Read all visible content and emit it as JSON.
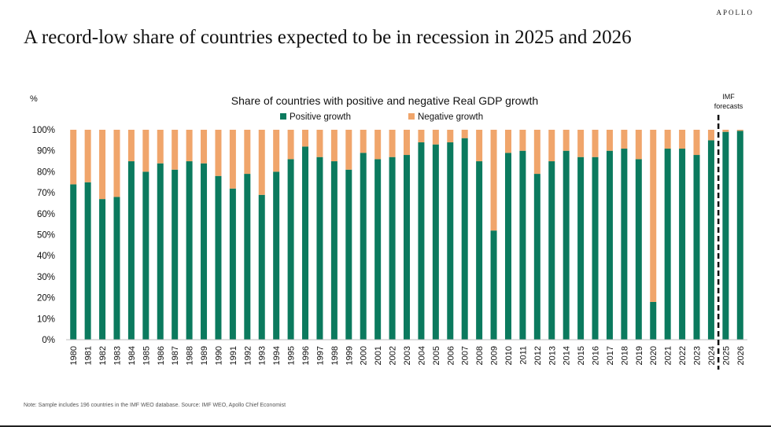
{
  "brand": "APOLLO",
  "headline": "A record-low share of countries expected to be in recession in 2025 and 2026",
  "note": "Note: Sample includes 196 countries in the IMF WEO database. Source: IMF WEO, Apollo Chief Economist",
  "colors": {
    "positive": "#0b7a5e",
    "negative": "#f0a56b"
  },
  "chart_data": {
    "type": "bar",
    "stacked": true,
    "title": "Share of countries with positive and negative Real GDP growth",
    "ylabel": "%",
    "ylim": [
      0,
      100
    ],
    "yticks": [
      "0%",
      "10%",
      "20%",
      "30%",
      "40%",
      "50%",
      "60%",
      "70%",
      "80%",
      "90%",
      "100%"
    ],
    "legend_position": "top-center",
    "forecast_label": [
      "IMF",
      "forecasts"
    ],
    "forecast_start": "2025",
    "categories": [
      "1980",
      "1981",
      "1982",
      "1983",
      "1984",
      "1985",
      "1986",
      "1987",
      "1988",
      "1989",
      "1990",
      "1991",
      "1992",
      "1993",
      "1994",
      "1995",
      "1996",
      "1997",
      "1998",
      "1999",
      "2000",
      "2001",
      "2002",
      "2003",
      "2004",
      "2005",
      "2006",
      "2007",
      "2008",
      "2009",
      "2010",
      "2011",
      "2012",
      "2013",
      "2014",
      "2015",
      "2016",
      "2017",
      "2018",
      "2019",
      "2020",
      "2021",
      "2022",
      "2023",
      "2024",
      "2025",
      "2026"
    ],
    "series": [
      {
        "name": "Positive growth",
        "values": [
          74,
          75,
          67,
          68,
          85,
          80,
          84,
          81,
          85,
          84,
          78,
          72,
          79,
          69,
          80,
          86,
          92,
          87,
          85,
          81,
          89,
          86,
          87,
          88,
          94,
          93,
          94,
          96,
          85,
          52,
          89,
          90,
          79,
          85,
          90,
          87,
          87,
          90,
          91,
          86,
          18,
          91,
          91,
          88,
          95,
          99,
          99.5
        ]
      },
      {
        "name": "Negative growth",
        "values": [
          26,
          25,
          33,
          32,
          15,
          20,
          16,
          19,
          15,
          16,
          22,
          28,
          21,
          31,
          20,
          14,
          8,
          13,
          15,
          19,
          11,
          14,
          13,
          12,
          6,
          7,
          6,
          4,
          15,
          48,
          11,
          10,
          21,
          15,
          10,
          13,
          13,
          10,
          9,
          14,
          82,
          9,
          9,
          12,
          5,
          1,
          0.5
        ]
      }
    ]
  }
}
